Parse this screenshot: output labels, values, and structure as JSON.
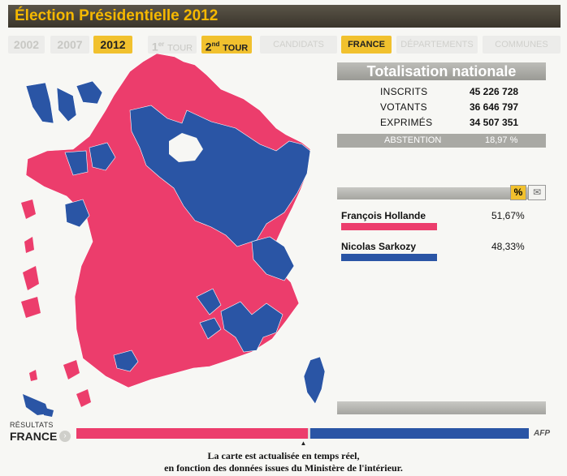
{
  "title": "Élection Présidentielle 2012",
  "nav": {
    "years": [
      "2002",
      "2007",
      "2012"
    ],
    "active_year": "2012",
    "tour1": {
      "num": "1",
      "sup": "er",
      "label": "TOUR"
    },
    "tour2": {
      "num": "2",
      "sup": "nd",
      "label": "TOUR"
    },
    "levels": [
      "CANDIDATS",
      "FRANCE",
      "DÉPARTEMENTS",
      "COMMUNES"
    ],
    "active_level": "FRANCE"
  },
  "national": {
    "header": "Totalisation nationale",
    "rows": [
      {
        "label": "INSCRITS",
        "value": "45 226 728"
      },
      {
        "label": "VOTANTS",
        "value": "36 646 797"
      },
      {
        "label": "EXPRIMÉS",
        "value": "34 507 351"
      }
    ],
    "abstention": {
      "label": "ABSTENTION",
      "value": "18,97 %"
    }
  },
  "panel_buttons": {
    "percent": "%",
    "mail_icon": "envelope-icon"
  },
  "candidates": [
    {
      "name": "François Hollande",
      "pct": "51,67%",
      "color": "#ec3d6c"
    },
    {
      "name": "Nicolas Sarkozy",
      "pct": "48,33%",
      "color": "#2a55a5"
    }
  ],
  "results": {
    "label": "RÉSULTATS",
    "area": "FRANCE",
    "share_hollande": 0.5167,
    "share_sarkozy": 0.4833,
    "logo": "AFP"
  },
  "colors": {
    "hollande": "#ec3d6c",
    "sarkozy": "#2a55a5",
    "accent": "#f1c12e"
  },
  "caption": [
    "La carte est actualisée en temps réel,",
    "en fonction des données issues du Ministère de l'intérieur."
  ]
}
